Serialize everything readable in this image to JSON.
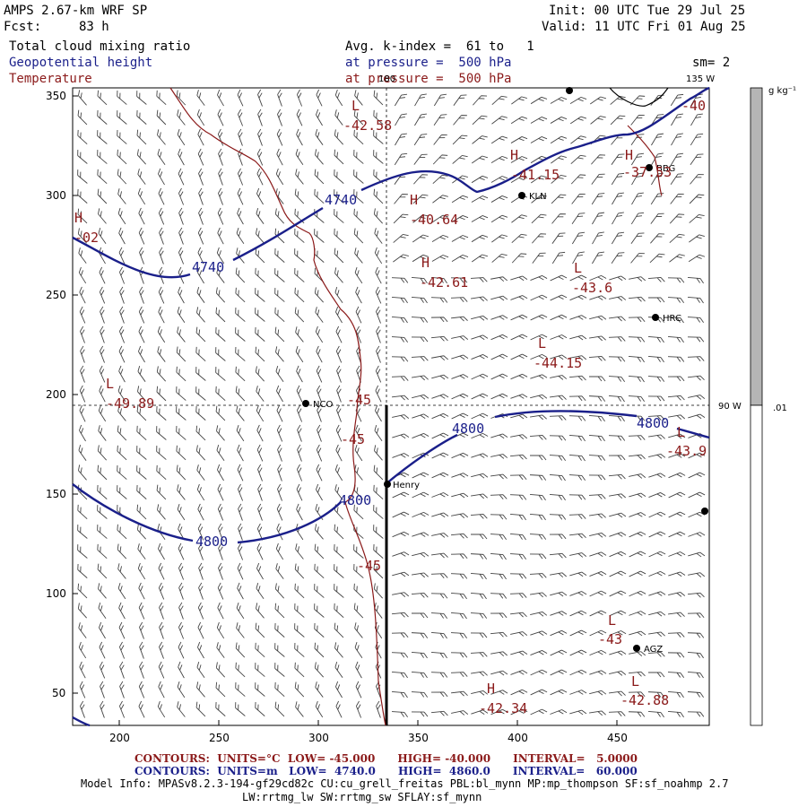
{
  "header": {
    "model": "AMPS 2.67-km WRF SP",
    "init": "Init: 00 UTC Tue 29 Jul 25",
    "fcst_label": "Fcst:",
    "fcst_value": "83 h",
    "valid": "Valid: 11 UTC Fri 01 Aug 25",
    "field1": "Total cloud mixing ratio",
    "field2": "Geopotential height",
    "field3": "Temperature",
    "avg": "Avg. k-index =  61 to   1",
    "press1": "at pressure =  500 hPa",
    "press2": "at pressure =  500 hPa",
    "sm": "sm= 2"
  },
  "colorbar": {
    "unit": "g kg⁻¹",
    "tick": ".01"
  },
  "graticule": {
    "top_lon": "180",
    "right_top_lon": "135 W",
    "right_mid_lon": "90 W"
  },
  "axes": {
    "x_ticks": [
      "200",
      "250",
      "300",
      "350",
      "400",
      "450"
    ],
    "y_ticks": [
      "350",
      "300",
      "250",
      "200",
      "150",
      "100",
      "50"
    ]
  },
  "stations": [
    {
      "name": "KLN"
    },
    {
      "name": "BBG"
    },
    {
      "name": "HRC"
    },
    {
      "name": "NCO"
    },
    {
      "name": "Henry"
    },
    {
      "name": "AGZ"
    }
  ],
  "temp_labels": [
    "-42.58",
    "-41.15",
    "-40.64",
    "-42.61",
    "-43.6",
    "-44.15",
    "-49.89",
    "-45",
    "-45",
    "-45",
    "-43",
    "-42.34",
    "-42.88",
    "-43.9",
    "-02",
    "-37.53",
    "-40"
  ],
  "height_labels": [
    "4740",
    "4740",
    "4800",
    "4800",
    "4800",
    "4800"
  ],
  "hl_marks": [
    "H",
    "H",
    "H",
    "H",
    "L",
    "L",
    "L",
    "L",
    "L",
    "L",
    "H",
    "L",
    "H"
  ],
  "footer": {
    "c1_label": "CONTOURS:  UNITS=°C  LOW= -45.000      HIGH= -40.000      INTERVAL=   5.0000",
    "c2_label": "CONTOURS:  UNITS=m   LOW=  4740.0      HIGH=  4860.0      INTERVAL=   60.000",
    "model_info": "Model Info: MPASv8.2.3-194-gf29cd82c CU:cu_grell_freitas PBL:bl_mynn MP:mp_thompson SF:sf_noahmp 2.7",
    "model_info2": "LW:rrtmg_lw SW:rrtmg_sw SFLAY:sf_mynn"
  }
}
